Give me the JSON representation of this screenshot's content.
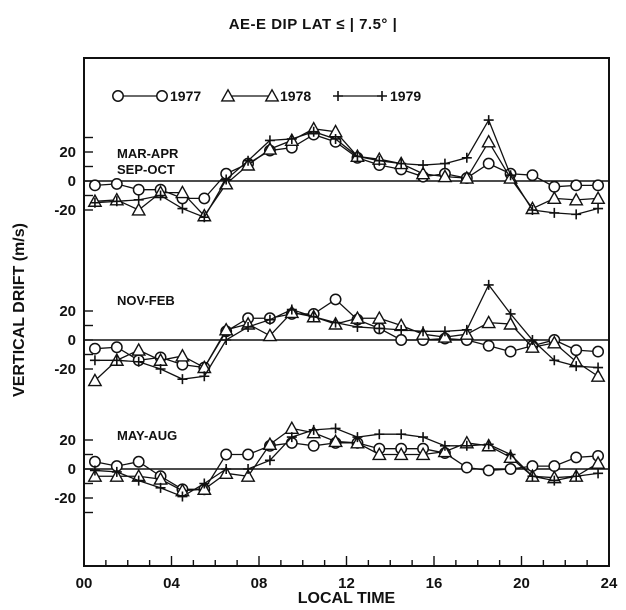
{
  "chart_data": {
    "type": "line",
    "title": "AE-E    DIP LAT ≤ | 7.5° |",
    "xlabel": "LOCAL TIME",
    "ylabel": "VERTICAL DRIFT (m/s)",
    "xlim": [
      0,
      24
    ],
    "xticks": [
      "00",
      "04",
      "08",
      "12",
      "16",
      "20",
      "24"
    ],
    "yticks": [
      "20",
      "0",
      "-20",
      "20",
      "0",
      "-20",
      "20",
      "0",
      "-20"
    ],
    "legend": [
      {
        "name": "1977",
        "label": "O——O 1977",
        "marker": "circle"
      },
      {
        "name": "1978",
        "label": "△——△ 1978",
        "marker": "triangle"
      },
      {
        "name": "1979",
        "label": "+——+ 1979",
        "marker": "plus"
      }
    ],
    "panels": [
      {
        "label_lines": [
          "MAR-APR",
          "SEP-OCT"
        ],
        "x": [
          0.5,
          1.5,
          2.5,
          3.5,
          4.5,
          5.5,
          6.5,
          7.5,
          8.5,
          9.5,
          10.5,
          11.5,
          12.5,
          13.5,
          14.5,
          15.5,
          16.5,
          17.5,
          18.5,
          19.5,
          20.5,
          21.5,
          22.5,
          23.5
        ],
        "series": [
          {
            "name": "1977",
            "values": [
              -3,
              -2,
              -6,
              -6,
              -12,
              -12,
              5,
              12,
              21,
              23,
              32,
              27,
              16,
              11,
              8,
              3,
              5,
              2,
              12,
              5,
              4,
              -4,
              -3,
              -3
            ]
          },
          {
            "name": "1978",
            "values": [
              -14,
              -13,
              -20,
              -8,
              -8,
              -24,
              -2,
              11,
              22,
              28,
              36,
              34,
              17,
              15,
              12,
              5,
              3,
              2,
              27,
              2,
              -19,
              -12,
              -13,
              -12
            ]
          },
          {
            "name": "1979",
            "values": [
              -15,
              -14,
              -13,
              -10,
              -19,
              -25,
              1,
              14,
              28,
              29,
              34,
              29,
              17,
              14,
              12,
              11,
              12,
              16,
              42,
              4,
              -20,
              -22,
              -23,
              -19
            ]
          }
        ]
      },
      {
        "label_lines": [
          "NOV-FEB"
        ],
        "x": [
          0.5,
          1.5,
          2.5,
          3.5,
          4.5,
          5.5,
          6.5,
          7.5,
          8.5,
          9.5,
          10.5,
          11.5,
          12.5,
          13.5,
          14.5,
          15.5,
          16.5,
          17.5,
          18.5,
          19.5,
          20.5,
          21.5,
          22.5,
          23.5
        ],
        "series": [
          {
            "name": "1977",
            "values": [
              -6,
              -5,
              -14,
              -12,
              -17,
              -19,
              6,
              15,
              15,
              18,
              18,
              28,
              14,
              8,
              0,
              0,
              1,
              0,
              -4,
              -8,
              -4,
              0,
              -7,
              -8
            ]
          },
          {
            "name": "1978",
            "values": [
              -28,
              -14,
              -7,
              -14,
              -11,
              -19,
              7,
              11,
              3,
              19,
              16,
              11,
              15,
              15,
              10,
              4,
              2,
              4,
              12,
              11,
              -5,
              -2,
              -15,
              -25
            ]
          },
          {
            "name": "1979",
            "values": [
              -14,
              -14,
              -15,
              -20,
              -27,
              -25,
              0,
              9,
              14,
              21,
              16,
              12,
              9,
              8,
              7,
              6,
              6,
              7,
              38,
              18,
              0,
              -14,
              -18,
              -19
            ]
          }
        ]
      },
      {
        "label_lines": [
          "MAY-AUG"
        ],
        "x": [
          0.5,
          1.5,
          2.5,
          3.5,
          4.5,
          5.5,
          6.5,
          7.5,
          8.5,
          9.5,
          10.5,
          11.5,
          12.5,
          13.5,
          14.5,
          15.5,
          16.5,
          17.5,
          18.5,
          19.5,
          20.5,
          21.5,
          22.5,
          23.5
        ],
        "series": [
          {
            "name": "1977",
            "values": [
              5,
              2,
              5,
              -5,
              -14,
              -14,
              10,
              10,
              16,
              18,
              16,
              18,
              18,
              14,
              14,
              14,
              11,
              1,
              -1,
              0,
              2,
              2,
              8,
              9
            ]
          },
          {
            "name": "1978",
            "values": [
              -5,
              -5,
              -5,
              -7,
              -15,
              -14,
              -3,
              -5,
              17,
              28,
              25,
              19,
              18,
              10,
              10,
              10,
              12,
              18,
              16,
              8,
              -5,
              -6,
              -5,
              4
            ]
          },
          {
            "name": "1979",
            "values": [
              -1,
              -2,
              -8,
              -13,
              -19,
              -10,
              0,
              0,
              6,
              22,
              27,
              28,
              22,
              24,
              24,
              22,
              16,
              16,
              17,
              10,
              -5,
              -8,
              -5,
              -3
            ]
          }
        ]
      }
    ]
  }
}
